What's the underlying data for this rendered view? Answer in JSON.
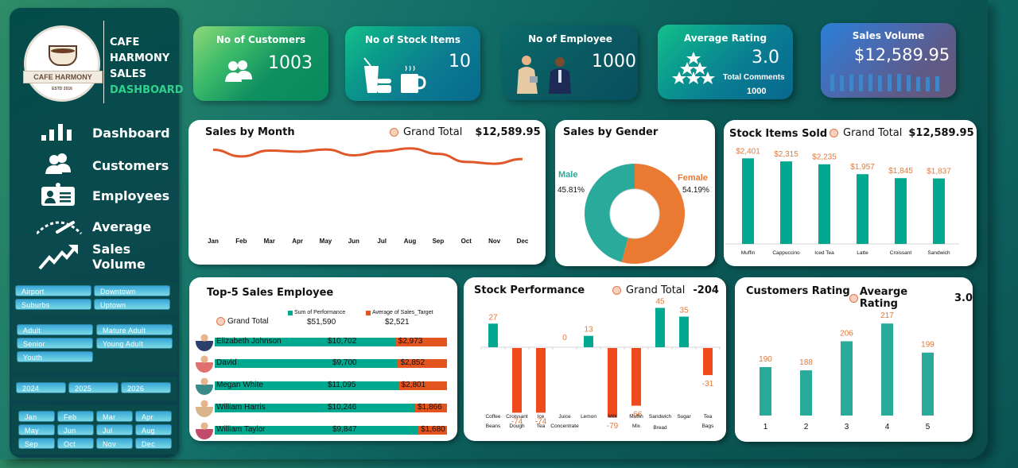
{
  "brand": {
    "logo_text": "CAFE HARMONY",
    "logo_estd": "ESTD 2016",
    "lines": [
      "CAFE",
      "HARMONY",
      "SALES"
    ],
    "highlight": "DASHBOARD"
  },
  "nav": [
    {
      "label": "Dashboard",
      "icon": "bar-chart-icon"
    },
    {
      "label": "Customers",
      "icon": "users-icon"
    },
    {
      "label": "Employees",
      "icon": "id-card-icon"
    },
    {
      "label": "Average",
      "icon": "gauge-icon"
    },
    {
      "label": "Sales Volume",
      "icon": "trend-up-icon"
    }
  ],
  "slicers": {
    "location": [
      "Airport",
      "Downtown",
      "Suburbs",
      "Uptown"
    ],
    "age_group": [
      "Adult",
      "Mature Adult",
      "Senior",
      "Young Adult",
      "Youth"
    ],
    "year": [
      "2024",
      "2025",
      "2026"
    ],
    "month": [
      "Jan",
      "Feb",
      "Mar",
      "Apr",
      "May",
      "Jun",
      "Jul",
      "Aug",
      "Sep",
      "Oct",
      "Nov",
      "Dec"
    ]
  },
  "kpis": {
    "customers": {
      "title": "No of Customers",
      "value": "1003"
    },
    "stock_items": {
      "title": "No of Stock Items",
      "value": "10"
    },
    "employees": {
      "title": "No of Employee",
      "value": "1000"
    },
    "rating": {
      "title": "Average Rating",
      "value": "3.0",
      "comments_label": "Total Comments",
      "comments_value": "1000"
    },
    "sales_volume": {
      "title": "Sales Volume",
      "value": "$12,589.95"
    }
  },
  "colors": {
    "teal": "#00a88f",
    "orange": "#e3541f",
    "label_orange": "#e07a3a",
    "donut_teal": "#2aaa9b",
    "donut_orange": "#ea7a32"
  },
  "chart_data": [
    {
      "id": "sales_by_month",
      "type": "line",
      "title": "Sales by Month",
      "legend_label": "Grand Total",
      "legend_value": "$12,589.95",
      "categories": [
        "Jan",
        "Feb",
        "Mar",
        "Apr",
        "May",
        "Jun",
        "Jul",
        "Aug",
        "Sep",
        "Oct",
        "Nov",
        "Dec"
      ],
      "values": [
        1110,
        1020,
        1100,
        1085,
        1115,
        1035,
        1090,
        1130,
        1055,
        945,
        920,
        985
      ],
      "ylim": [
        0,
        1300
      ]
    },
    {
      "id": "sales_by_gender",
      "type": "pie",
      "title": "Sales by Gender",
      "labels": [
        "Male",
        "Female"
      ],
      "values": [
        45.81,
        54.19
      ],
      "value_labels": [
        "45.81%",
        "54.19%"
      ]
    },
    {
      "id": "stock_items_sold",
      "type": "bar",
      "title": "Stock Items Sold",
      "legend_label": "Grand Total",
      "legend_value": "$12,589.95",
      "categories": [
        "Muffin",
        "Cappuccino",
        "Iced Tea",
        "Latte",
        "Croissant",
        "Sandwich"
      ],
      "values": [
        2401,
        2315,
        2235,
        1957,
        1845,
        1837
      ],
      "value_labels": [
        "$2,401",
        "$2,315",
        "$2,235",
        "$1,957",
        "$1,845",
        "$1,837"
      ],
      "ylim": [
        0,
        2600
      ]
    },
    {
      "id": "top5_sales_employee",
      "type": "bar",
      "title": "Top-5 Sales Employee",
      "legend_label": "Grand Total",
      "series_names": [
        "Sum of Performance",
        "Average of Sales_Target"
      ],
      "totals": [
        "$51,590",
        "$2,521"
      ],
      "categories": [
        "Elizabeth Johnson",
        "David",
        "Megan White",
        "William Harris",
        "William Taylor"
      ],
      "series": [
        {
          "name": "Sum of Performance",
          "values": [
            10702,
            9700,
            11095,
            10246,
            9847
          ],
          "labels": [
            "$10,702",
            "$9,700",
            "$11,095",
            "$10,246",
            "$9,847"
          ]
        },
        {
          "name": "Average of Sales_Target",
          "values": [
            2973,
            2852,
            2801,
            1866,
            1680
          ],
          "labels": [
            "$2,973",
            "$2,852",
            "$2,801",
            "$1,866",
            "$1,680"
          ]
        }
      ]
    },
    {
      "id": "stock_performance",
      "type": "bar",
      "title": "Stock Performance",
      "legend_label": "Grand Total",
      "legend_value": "-204",
      "categories": [
        [
          "Coffee",
          "Beans"
        ],
        [
          "Croissant",
          "Dough"
        ],
        [
          "Ice",
          "Tea"
        ],
        [
          "Juice",
          "Concentrate"
        ],
        [
          "Lemon"
        ],
        [
          "Milk"
        ],
        [
          "Muffin",
          "Mix"
        ],
        [
          "Sandwich",
          "Bread"
        ],
        [
          "Sugar"
        ],
        [
          "Tea",
          "Bags"
        ]
      ],
      "values": [
        27,
        -74,
        -74,
        0,
        13,
        -79,
        -66,
        45,
        35,
        -31
      ],
      "ylim": [
        -90,
        55
      ]
    },
    {
      "id": "customers_rating",
      "type": "bar",
      "title": "Customers Rating",
      "legend_label": "Avearge Rating",
      "legend_value": "3.0",
      "categories": [
        "1",
        "2",
        "3",
        "4",
        "5"
      ],
      "values": [
        190,
        188,
        206,
        217,
        199
      ],
      "ylim": [
        160,
        222
      ]
    }
  ]
}
